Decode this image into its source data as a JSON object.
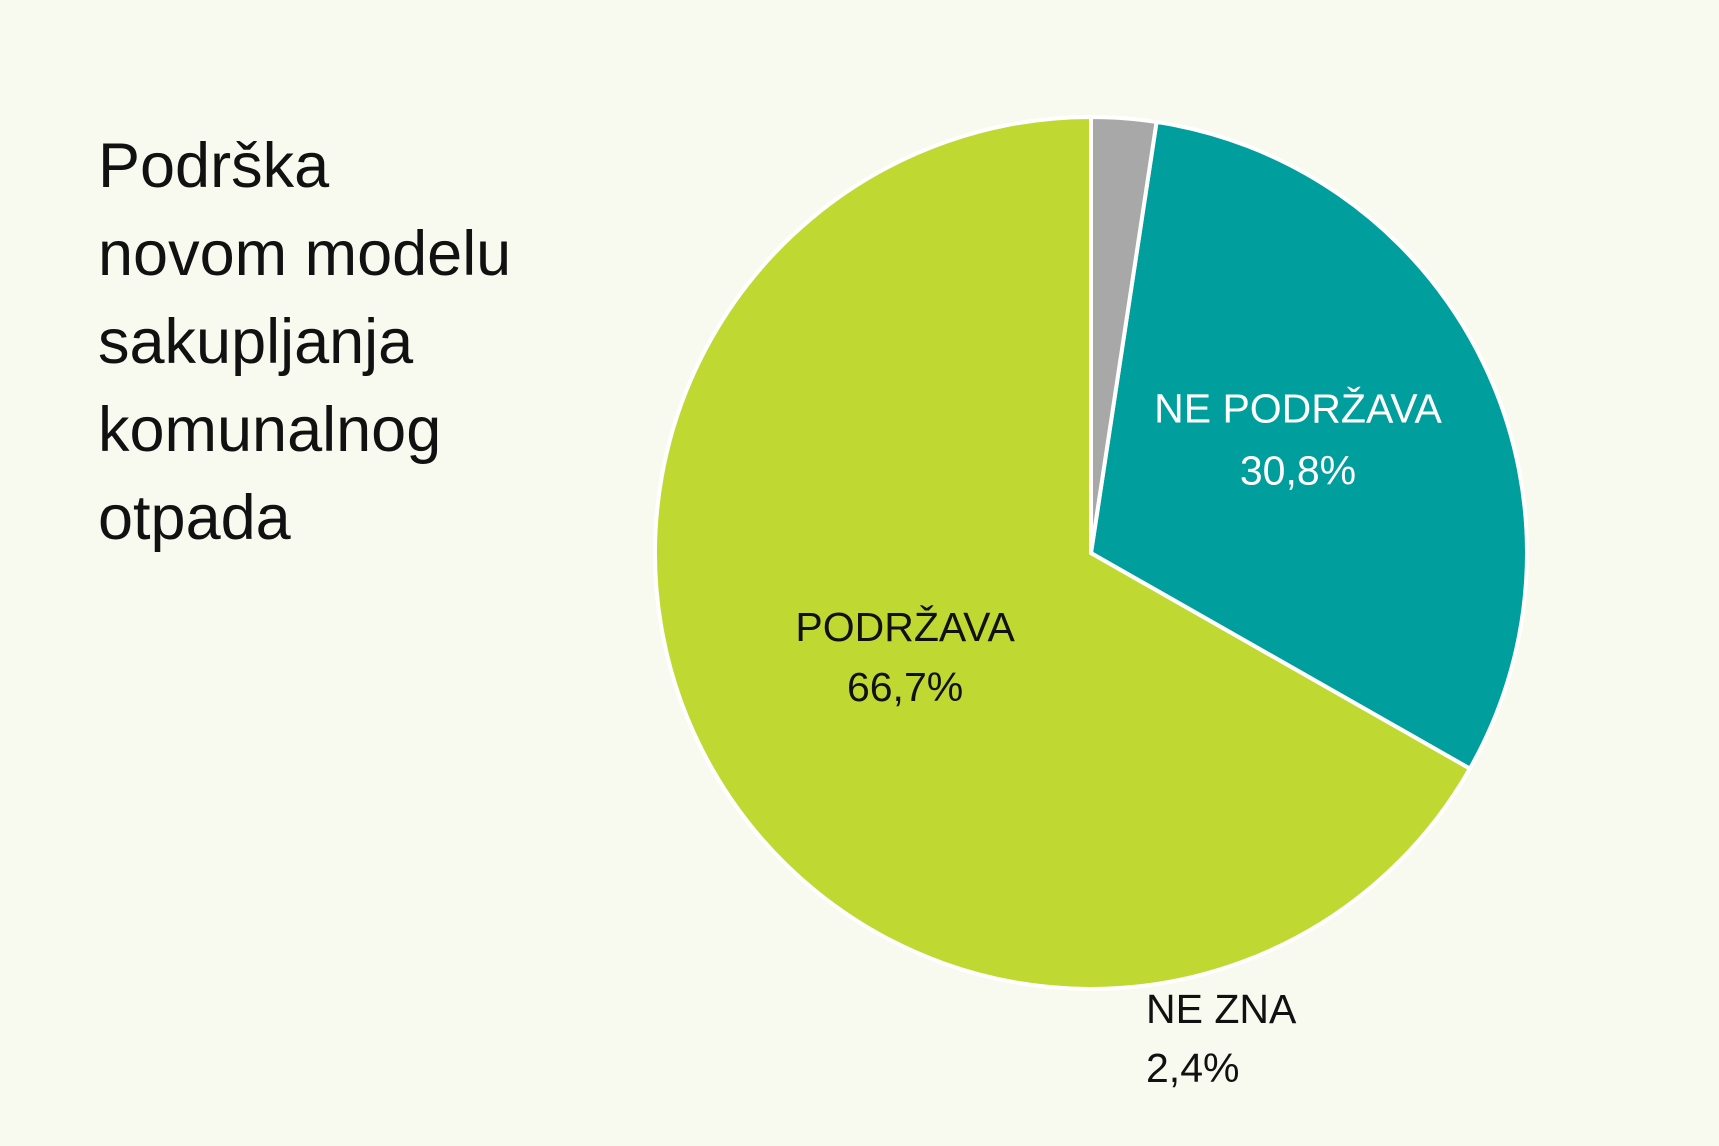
{
  "title_lines": [
    "Podrška",
    "novom modelu",
    "sakupljanja",
    "komunalnog",
    "otpada"
  ],
  "chart_data": {
    "type": "pie",
    "title": "Podrška novom modelu sakupljanja komunalnog otpada",
    "slices": [
      {
        "label": "PODRŽAVA",
        "value": 66.7,
        "value_label": "66,7%",
        "color": "#c0d932",
        "label_color": "#111111"
      },
      {
        "label": "NE PODRŽAVA",
        "value": 30.8,
        "value_label": "30,8%",
        "color": "#009e9c",
        "label_color": "#ffffff"
      },
      {
        "label": "NE ZNA",
        "value": 2.4,
        "value_label": "2,4%",
        "color": "#a8a8a8",
        "label_color": "#111111"
      }
    ],
    "start": "12 o'clock, counterclockwise",
    "legend": "none (labels on slices)"
  }
}
